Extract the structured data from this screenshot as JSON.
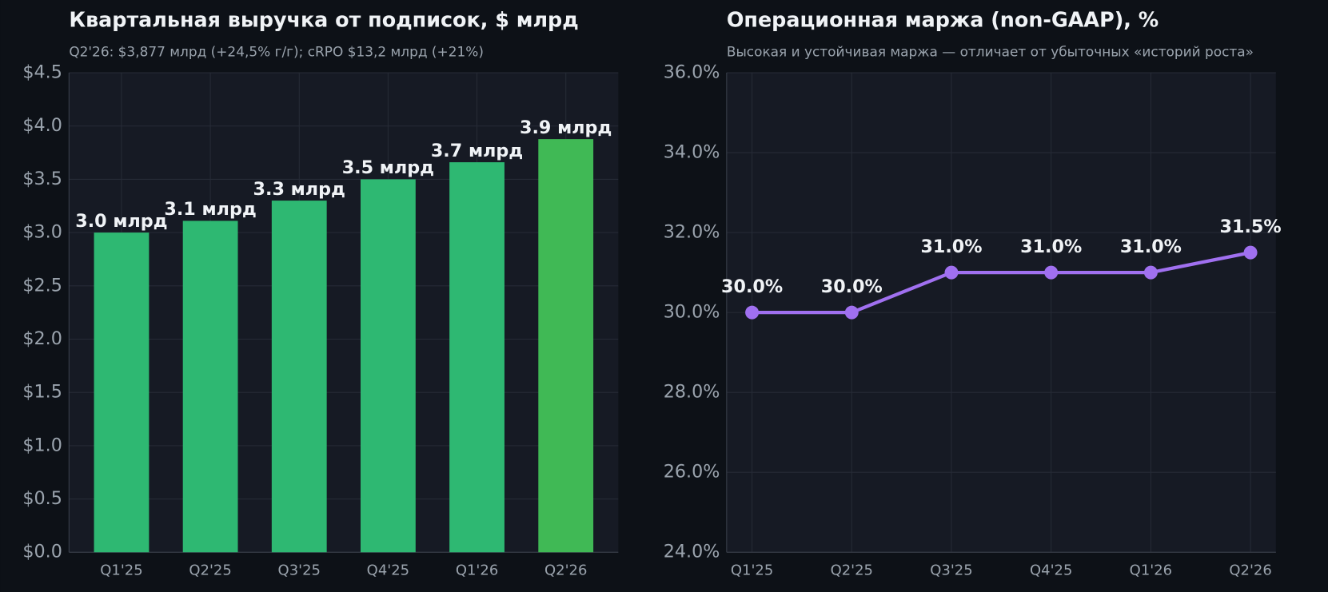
{
  "chart_data": [
    {
      "type": "bar",
      "title": "Квартальная выручка от подписок, $ млрд",
      "subtitle": "Q2'26: $3,877 млрд (+24,5% г/г); cRPO $13,2 млрд (+21%)",
      "categories": [
        "Q1'25",
        "Q2'25",
        "Q3'25",
        "Q4'25",
        "Q1'26",
        "Q2'26"
      ],
      "values": [
        3.0,
        3.11,
        3.3,
        3.5,
        3.66,
        3.877
      ],
      "value_labels": [
        "3.0 млрд",
        "3.1 млрд",
        "3.3 млрд",
        "3.5 млрд",
        "3.7 млрд",
        "3.9 млрд"
      ],
      "colors": [
        "#2eb872",
        "#2eb872",
        "#2eb872",
        "#2eb872",
        "#2eb872",
        "#40b955"
      ],
      "ylim": [
        0,
        4.5
      ],
      "yticks": [
        {
          "value": 0,
          "label": "$0.0"
        },
        {
          "value": 0.5,
          "label": "$0.5"
        },
        {
          "value": 1,
          "label": "$1.0"
        },
        {
          "value": 1.5,
          "label": "$1.5"
        },
        {
          "value": 2,
          "label": "$2.0"
        },
        {
          "value": 2.5,
          "label": "$2.5"
        },
        {
          "value": 3,
          "label": "$3.0"
        },
        {
          "value": 3.5,
          "label": "$3.5"
        },
        {
          "value": 4,
          "label": "$4.0"
        },
        {
          "value": 4.5,
          "label": "$4.5"
        }
      ],
      "grid": true
    },
    {
      "type": "line",
      "title": "Операционная маржа (non-GAAP), %",
      "subtitle": "Высокая и устойчивая маржа — отличает от убыточных «историй роста»",
      "categories": [
        "Q1'25",
        "Q2'25",
        "Q3'25",
        "Q4'25",
        "Q1'26",
        "Q2'26"
      ],
      "values": [
        30.0,
        30.0,
        31.0,
        31.0,
        31.0,
        31.5
      ],
      "value_labels": [
        "30.0%",
        "30.0%",
        "31.0%",
        "31.0%",
        "31.0%",
        "31.5%"
      ],
      "color": "#a070f0",
      "ylim": [
        24,
        36
      ],
      "yticks": [
        {
          "value": 24,
          "label": "24.0%"
        },
        {
          "value": 26,
          "label": "26.0%"
        },
        {
          "value": 28,
          "label": "28.0%"
        },
        {
          "value": 30,
          "label": "30.0%"
        },
        {
          "value": 32,
          "label": "32.0%"
        },
        {
          "value": 34,
          "label": "34.0%"
        },
        {
          "value": 36,
          "label": "36.0%"
        }
      ],
      "grid": true
    }
  ]
}
